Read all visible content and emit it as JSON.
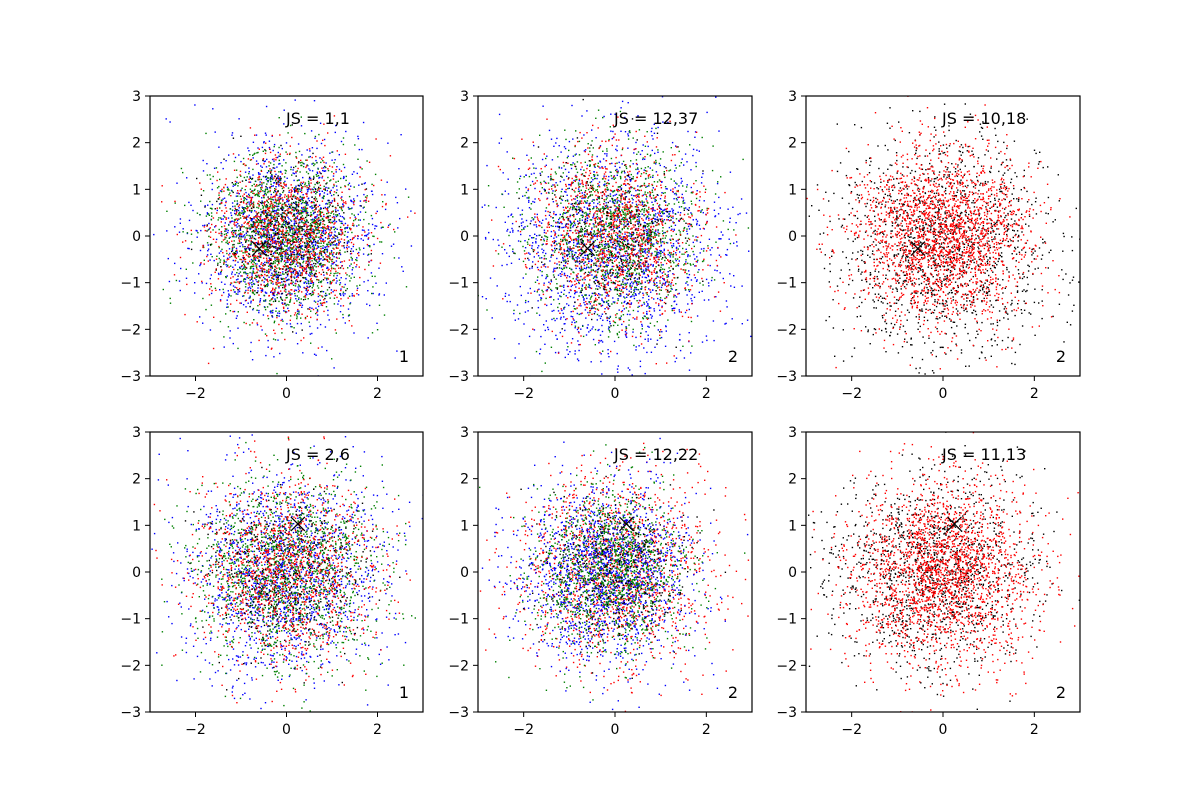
{
  "figure": {
    "background": "#ffffff"
  },
  "chart_data": [
    {
      "type": "scatter",
      "panel": "top-left",
      "annotation": "JS = 1,1",
      "tag": "1",
      "xlim": [
        -3,
        3
      ],
      "ylim": [
        -3,
        3
      ],
      "xticks": [
        -2,
        0,
        2
      ],
      "xtick_labels": [
        "−2",
        "0",
        "2"
      ],
      "yticks": [
        -3,
        -2,
        -1,
        0,
        1,
        2,
        3
      ],
      "ytick_labels": [
        "−3",
        "−2",
        "−1",
        "0",
        "1",
        "2",
        "3"
      ],
      "marker": {
        "symbol": "x",
        "x": -0.6,
        "y": -0.27,
        "color": "#000000"
      },
      "series": [
        {
          "color": "#0000ff",
          "count": 1500,
          "spread": 0.95,
          "center": [
            0,
            0
          ]
        },
        {
          "color": "#008000",
          "count": 1500,
          "spread": 0.85,
          "center": [
            0,
            0
          ]
        },
        {
          "color": "#ff0000",
          "count": 1200,
          "spread": 0.85,
          "center": [
            0,
            0
          ]
        },
        {
          "color": "#000000",
          "count": 400,
          "spread": 0.7,
          "center": [
            0,
            0
          ]
        }
      ]
    },
    {
      "type": "scatter",
      "panel": "top-middle",
      "annotation": "JS = 12,37",
      "tag": "2",
      "xlim": [
        -3,
        3
      ],
      "ylim": [
        -3,
        3
      ],
      "xticks": [
        -2,
        0,
        2
      ],
      "xtick_labels": [
        "−2",
        "0",
        "2"
      ],
      "yticks": [
        -3,
        -2,
        -1,
        0,
        1,
        2,
        3
      ],
      "ytick_labels": [
        "−3",
        "−2",
        "−1",
        "0",
        "1",
        "2",
        "3"
      ],
      "marker": {
        "symbol": "x",
        "x": -0.6,
        "y": -0.27,
        "color": "#000000"
      },
      "series": [
        {
          "color": "#0000ff",
          "count": 1700,
          "spread": 1.2,
          "center": [
            0,
            -0.3
          ]
        },
        {
          "color": "#008000",
          "count": 1300,
          "spread": 0.95,
          "center": [
            0,
            0
          ]
        },
        {
          "color": "#ff0000",
          "count": 1200,
          "spread": 0.95,
          "center": [
            0,
            0
          ]
        },
        {
          "color": "#000000",
          "count": 350,
          "spread": 0.8,
          "center": [
            0,
            0
          ]
        }
      ]
    },
    {
      "type": "scatter",
      "panel": "top-right",
      "annotation": "JS = 10,18",
      "tag": "2",
      "xlim": [
        -3,
        3
      ],
      "ylim": [
        -3,
        3
      ],
      "xticks": [
        -2,
        0,
        2
      ],
      "xtick_labels": [
        "−2",
        "0",
        "2"
      ],
      "yticks": [
        -3,
        -2,
        -1,
        0,
        1,
        2,
        3
      ],
      "ytick_labels": [
        "−3",
        "−2",
        "−1",
        "0",
        "1",
        "2",
        "3"
      ],
      "marker": {
        "symbol": "x",
        "x": -0.55,
        "y": -0.27,
        "color": "#000000"
      },
      "series": [
        {
          "color": "#000000",
          "count": 1500,
          "spread": 1.15,
          "center": [
            0,
            -0.2
          ]
        },
        {
          "color": "#ff0000",
          "count": 2200,
          "spread": 0.95,
          "center": [
            0,
            0
          ]
        }
      ]
    },
    {
      "type": "scatter",
      "panel": "bottom-left",
      "annotation": "JS = 2,6",
      "tag": "1",
      "xlim": [
        -3,
        3
      ],
      "ylim": [
        -3,
        3
      ],
      "xticks": [
        -2,
        0,
        2
      ],
      "xtick_labels": [
        "−2",
        "0",
        "2"
      ],
      "yticks": [
        -3,
        -2,
        -1,
        0,
        1,
        2,
        3
      ],
      "ytick_labels": [
        "−3",
        "−2",
        "−1",
        "0",
        "1",
        "2",
        "3"
      ],
      "marker": {
        "symbol": "x",
        "x": 0.25,
        "y": 1.03,
        "color": "#000000"
      },
      "series": [
        {
          "color": "#0000ff",
          "count": 1600,
          "spread": 1.05,
          "center": [
            0,
            0
          ]
        },
        {
          "color": "#008000",
          "count": 1500,
          "spread": 1.0,
          "center": [
            0,
            0
          ]
        },
        {
          "color": "#ff0000",
          "count": 1300,
          "spread": 1.0,
          "center": [
            0,
            0
          ]
        },
        {
          "color": "#000000",
          "count": 400,
          "spread": 0.85,
          "center": [
            0,
            0
          ]
        }
      ]
    },
    {
      "type": "scatter",
      "panel": "bottom-middle",
      "annotation": "JS = 12,22",
      "tag": "2",
      "xlim": [
        -3,
        3
      ],
      "ylim": [
        -3,
        3
      ],
      "xticks": [
        -2,
        0,
        2
      ],
      "xtick_labels": [
        "−2",
        "0",
        "2"
      ],
      "yticks": [
        -3,
        -2,
        -1,
        0,
        1,
        2,
        3
      ],
      "ytick_labels": [
        "−3",
        "−2",
        "−1",
        "0",
        "1",
        "2",
        "3"
      ],
      "marker": {
        "symbol": "x",
        "x": 0.25,
        "y": 1.03,
        "color": "#000000"
      },
      "series": [
        {
          "color": "#ff0000",
          "count": 1500,
          "spread": 1.05,
          "center": [
            0,
            0
          ]
        },
        {
          "color": "#0000ff",
          "count": 1600,
          "spread": 0.95,
          "center": [
            -0.2,
            0
          ]
        },
        {
          "color": "#008000",
          "count": 1300,
          "spread": 0.85,
          "center": [
            -0.1,
            0
          ]
        },
        {
          "color": "#000000",
          "count": 350,
          "spread": 0.8,
          "center": [
            0,
            0
          ]
        }
      ]
    },
    {
      "type": "scatter",
      "panel": "bottom-right",
      "annotation": "JS = 11,13",
      "tag": "2",
      "xlim": [
        -3,
        3
      ],
      "ylim": [
        -3,
        3
      ],
      "xticks": [
        -2,
        0,
        2
      ],
      "xtick_labels": [
        "−2",
        "0",
        "2"
      ],
      "yticks": [
        -3,
        -2,
        -1,
        0,
        1,
        2,
        3
      ],
      "ytick_labels": [
        "−3",
        "−2",
        "−1",
        "0",
        "1",
        "2",
        "3"
      ],
      "marker": {
        "symbol": "x",
        "x": 0.25,
        "y": 1.03,
        "color": "#000000"
      },
      "series": [
        {
          "color": "#000000",
          "count": 1400,
          "spread": 1.05,
          "center": [
            -0.2,
            0
          ]
        },
        {
          "color": "#ff0000",
          "count": 2200,
          "spread": 1.0,
          "center": [
            0,
            0
          ]
        }
      ]
    }
  ]
}
